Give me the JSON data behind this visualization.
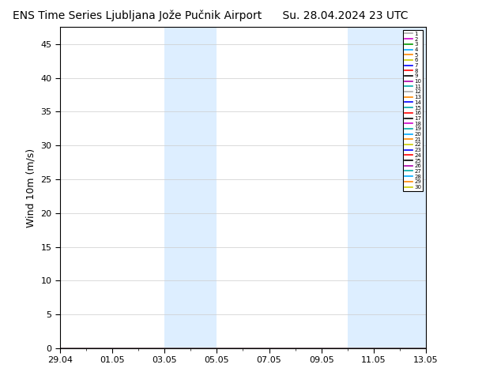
{
  "title": "ENS Time Series Ljubljana Jože Pučnik Airport",
  "title_right": "Su. 28.04.2024 23 UTC",
  "ylabel": "Wind 10m (m/s)",
  "ylim": [
    0,
    47.5
  ],
  "yticks": [
    0,
    5,
    10,
    15,
    20,
    25,
    30,
    35,
    40,
    45
  ],
  "xtick_labels": [
    "29.04",
    "01.05",
    "03.05",
    "05.05",
    "07.05",
    "09.05",
    "11.05",
    "13.05"
  ],
  "xtick_positions": [
    0,
    2,
    4,
    6,
    8,
    10,
    12,
    14
  ],
  "xlim": [
    0,
    14
  ],
  "shade_regions": [
    [
      4.0,
      5.0
    ],
    [
      5.0,
      6.0
    ],
    [
      11.0,
      12.0
    ],
    [
      12.0,
      14.0
    ]
  ],
  "shade_color": "#ddeeff",
  "n_members": 30,
  "member_colors": [
    "#aaaaaa",
    "#cc00cc",
    "#009900",
    "#00aaff",
    "#ff8800",
    "#cccc00",
    "#0000ff",
    "#ff0000",
    "#000000",
    "#aa00aa",
    "#00aaaa",
    "#aaaaaa",
    "#ff8800",
    "#0000ff",
    "#00aaaa",
    "#ff0000",
    "#000000",
    "#cc00cc",
    "#00aaaa",
    "#00aaff",
    "#ff8800",
    "#cccc00",
    "#0000ff",
    "#ff0000",
    "#000000",
    "#aa00aa",
    "#00aaaa",
    "#00aaff",
    "#ff8800",
    "#cccc00"
  ],
  "background_color": "#ffffff",
  "plot_bg_color": "#ffffff",
  "figsize": [
    6.34,
    4.9
  ],
  "dpi": 100,
  "title_fontsize": 10,
  "tick_fontsize": 8,
  "ylabel_fontsize": 9
}
